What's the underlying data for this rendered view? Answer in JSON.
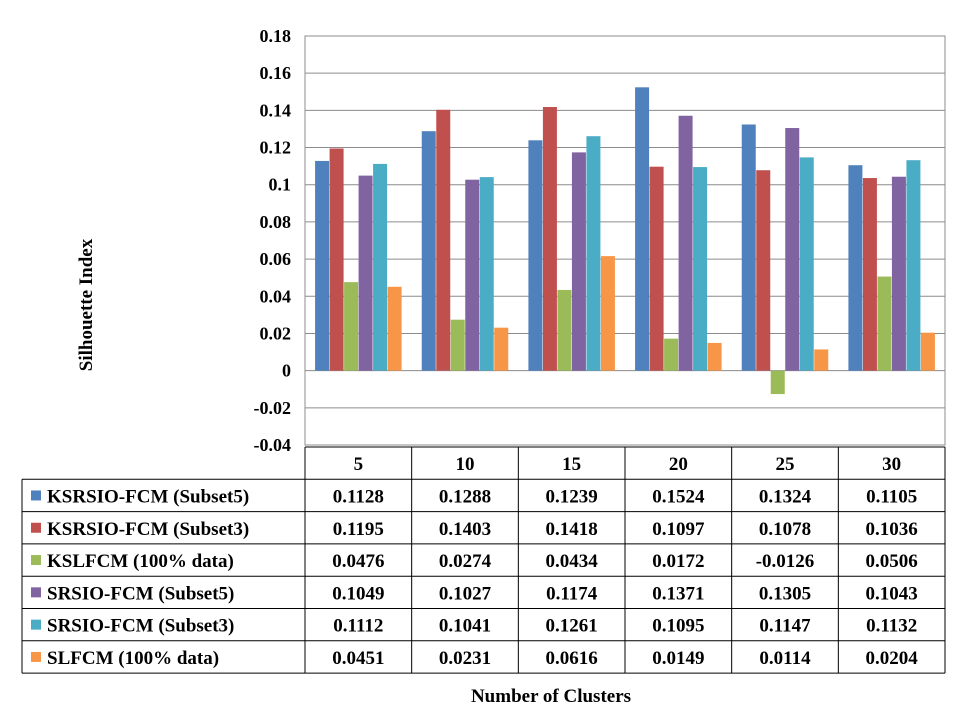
{
  "chart_data": {
    "type": "bar",
    "ylabel": "Silhouette Index",
    "xlabel": "Number of Clusters",
    "ylim": [
      -0.04,
      0.18
    ],
    "yticks": [
      -0.04,
      -0.02,
      0,
      0.02,
      0.04,
      0.06,
      0.08,
      0.1,
      0.12,
      0.14,
      0.16,
      0.18
    ],
    "ytick_labels": [
      "-0.04",
      "-0.02",
      "0",
      "0.02",
      "0.04",
      "0.06",
      "0.08",
      "0.1",
      "0.12",
      "0.14",
      "0.16",
      "0.18"
    ],
    "grid": "horizontal",
    "legend": "data-table-left",
    "categories": [
      "5",
      "10",
      "15",
      "20",
      "25",
      "30"
    ],
    "series": [
      {
        "name": "KSRSIO-FCM (Subset5)",
        "color": "#4F81BD",
        "values": [
          0.1128,
          0.1288,
          0.1239,
          0.1524,
          0.1324,
          0.1105
        ],
        "labels": [
          "0.1128",
          "0.1288",
          "0.1239",
          "0.1524",
          "0.1324",
          "0.1105"
        ]
      },
      {
        "name": "KSRSIO-FCM (Subset3)",
        "color": "#C0504D",
        "values": [
          0.1195,
          0.1403,
          0.1418,
          0.1097,
          0.1078,
          0.1036
        ],
        "labels": [
          "0.1195",
          "0.1403",
          "0.1418",
          "0.1097",
          "0.1078",
          "0.1036"
        ]
      },
      {
        "name": "KSLFCM (100% data)",
        "color": "#9BBB59",
        "values": [
          0.0476,
          0.0274,
          0.0434,
          0.0172,
          -0.0126,
          0.0506
        ],
        "labels": [
          "0.0476",
          "0.0274",
          "0.0434",
          "0.0172",
          "-0.0126",
          "0.0506"
        ]
      },
      {
        "name": "SRSIO-FCM (Subset5)",
        "color": "#8064A2",
        "values": [
          0.1049,
          0.1027,
          0.1174,
          0.1371,
          0.1305,
          0.1043
        ],
        "labels": [
          "0.1049",
          "0.1027",
          "0.1174",
          "0.1371",
          "0.1305",
          "0.1043"
        ]
      },
      {
        "name": "SRSIO-FCM (Subset3)",
        "color": "#4BACC6",
        "values": [
          0.1112,
          0.1041,
          0.1261,
          0.1095,
          0.1147,
          0.1132
        ],
        "labels": [
          "0.1112",
          "0.1041",
          "0.1261",
          "0.1095",
          "0.1147",
          "0.1132"
        ]
      },
      {
        "name": "SLFCM (100% data)",
        "color": "#F79646",
        "values": [
          0.0451,
          0.0231,
          0.0616,
          0.0149,
          0.0114,
          0.0204
        ],
        "labels": [
          "0.0451",
          "0.0231",
          "0.0616",
          "0.0149",
          "0.0114",
          "0.0204"
        ]
      }
    ]
  }
}
